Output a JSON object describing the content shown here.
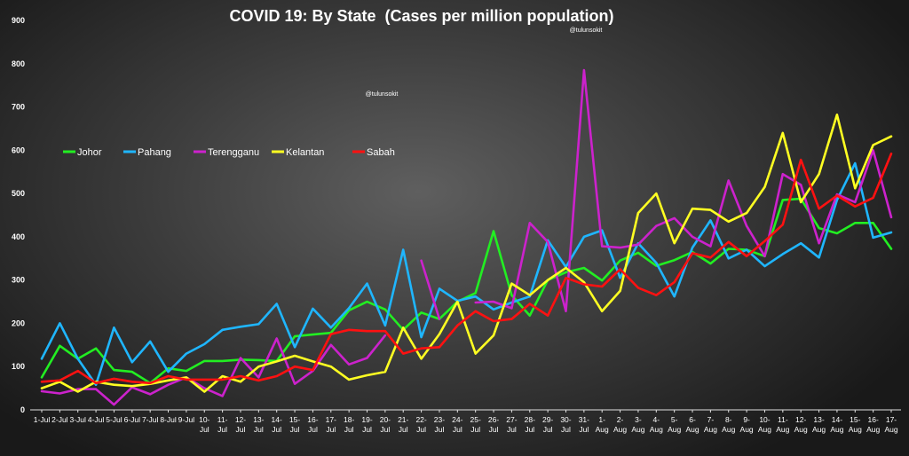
{
  "chart_data": {
    "type": "line",
    "title": "COVID 19: By State  (Cases per million population)",
    "watermarks": [
      "@tulunsokit",
      "@tulunsokit"
    ],
    "legend_position": "upper-left",
    "grid": false,
    "ylim": [
      0,
      900
    ],
    "yticks": [
      0,
      100,
      200,
      300,
      400,
      500,
      600,
      700,
      800,
      900
    ],
    "x": [
      "1-Jul",
      "2-Jul",
      "3-Jul",
      "4-Jul",
      "5-Jul",
      "6-Jul",
      "7-Jul",
      "8-Jul",
      "9-Jul",
      "10-Jul",
      "11-Jul",
      "12-Jul",
      "13-Jul",
      "14-Jul",
      "15-Jul",
      "16-Jul",
      "17-Jul",
      "18-Jul",
      "19-Jul",
      "20-Jul",
      "21-Jul",
      "22-Jul",
      "23-Jul",
      "24-Jul",
      "25-Jul",
      "26-Jul",
      "27-Jul",
      "28-Jul",
      "29-Jul",
      "30-Jul",
      "31-Jul",
      "1-Aug",
      "2-Aug",
      "3-Aug",
      "4-Aug",
      "5-Aug",
      "6-Aug",
      "7-Aug",
      "8-Aug",
      "9-Aug",
      "10-Aug",
      "11-Aug",
      "12-Aug",
      "13-Aug",
      "14-Aug",
      "15-Aug",
      "16-Aug",
      "17-Aug"
    ],
    "x_tick_labels": [
      [
        "1-Jul"
      ],
      [
        "2-Jul"
      ],
      [
        "3-Jul"
      ],
      [
        "4-Jul"
      ],
      [
        "5-Jul"
      ],
      [
        "6-Jul"
      ],
      [
        "7-Jul"
      ],
      [
        "8-Jul"
      ],
      [
        "9-Jul"
      ],
      [
        "10-",
        "Jul"
      ],
      [
        "11-",
        "Jul"
      ],
      [
        "12-",
        "Jul"
      ],
      [
        "13-",
        "Jul"
      ],
      [
        "14-",
        "Jul"
      ],
      [
        "15-",
        "Jul"
      ],
      [
        "16-",
        "Jul"
      ],
      [
        "17-",
        "Jul"
      ],
      [
        "18-",
        "Jul"
      ],
      [
        "19-",
        "Jul"
      ],
      [
        "20-",
        "Jul"
      ],
      [
        "21-",
        "Jul"
      ],
      [
        "22-",
        "Jul"
      ],
      [
        "23-",
        "Jul"
      ],
      [
        "24-",
        "Jul"
      ],
      [
        "25-",
        "Jul"
      ],
      [
        "26-",
        "Jul"
      ],
      [
        "27-",
        "Jul"
      ],
      [
        "28-",
        "Jul"
      ],
      [
        "29-",
        "Jul"
      ],
      [
        "30-",
        "Jul"
      ],
      [
        "31-",
        "Jul"
      ],
      [
        "1-",
        "Aug"
      ],
      [
        "2-",
        "Aug"
      ],
      [
        "3-",
        "Aug"
      ],
      [
        "4-",
        "Aug"
      ],
      [
        "5-",
        "Aug"
      ],
      [
        "6-",
        "Aug"
      ],
      [
        "7-",
        "Aug"
      ],
      [
        "8-",
        "Aug"
      ],
      [
        "9-",
        "Aug"
      ],
      [
        "10-",
        "Aug"
      ],
      [
        "11-",
        "Aug"
      ],
      [
        "12-",
        "Aug"
      ],
      [
        "13-",
        "Aug"
      ],
      [
        "14-",
        "Aug"
      ],
      [
        "15-",
        "Aug"
      ],
      [
        "16-",
        "Aug"
      ],
      [
        "17-",
        "Aug"
      ]
    ],
    "series": [
      {
        "name": "Johor",
        "color": "#22ee22",
        "values": [
          75,
          148,
          118,
          142,
          92,
          88,
          62,
          96,
          90,
          113,
          113,
          116,
          115,
          113,
          170,
          174,
          178,
          230,
          250,
          232,
          185,
          225,
          210,
          250,
          270,
          413,
          265,
          218,
          300,
          318,
          328,
          299,
          345,
          363,
          333,
          346,
          365,
          338,
          372,
          370,
          355,
          485,
          488,
          420,
          408,
          432,
          432,
          372
        ]
      },
      {
        "name": "Pahang",
        "color": "#1fb6ff",
        "values": [
          118,
          200,
          118,
          58,
          190,
          110,
          158,
          88,
          130,
          152,
          185,
          192,
          198,
          245,
          145,
          234,
          190,
          235,
          292,
          195,
          370,
          168,
          280,
          252,
          262,
          232,
          248,
          262,
          392,
          330,
          400,
          415,
          305,
          385,
          340,
          262,
          375,
          438,
          350,
          370,
          332,
          360,
          385,
          352,
          485,
          570,
          398,
          410
        ]
      },
      {
        "name": "Terengganu",
        "color": "#cc22cc",
        "values": [
          43,
          38,
          48,
          48,
          12,
          52,
          36,
          58,
          75,
          50,
          32,
          120,
          75,
          165,
          60,
          90,
          150,
          105,
          120,
          172,
          null,
          345,
          210,
          null,
          248,
          250,
          235,
          432,
          388,
          228,
          785,
          378,
          375,
          382,
          425,
          443,
          400,
          378,
          530,
          425,
          355,
          545,
          520,
          385,
          498,
          480,
          600,
          445
        ]
      },
      {
        "name": "Kelantan",
        "color": "#ffff22",
        "values": [
          50,
          65,
          42,
          65,
          58,
          55,
          60,
          68,
          75,
          42,
          78,
          65,
          100,
          112,
          125,
          112,
          100,
          70,
          80,
          88,
          190,
          118,
          175,
          250,
          130,
          172,
          292,
          265,
          300,
          328,
          295,
          228,
          275,
          455,
          500,
          385,
          465,
          462,
          435,
          455,
          515,
          640,
          480,
          545,
          682,
          512,
          612,
          632
        ]
      },
      {
        "name": "Sabah",
        "color": "#ff1111",
        "values": [
          65,
          68,
          90,
          62,
          72,
          65,
          62,
          78,
          70,
          70,
          70,
          78,
          68,
          78,
          100,
          92,
          175,
          185,
          182,
          182,
          130,
          142,
          145,
          195,
          228,
          205,
          210,
          245,
          218,
          305,
          290,
          285,
          325,
          282,
          265,
          295,
          362,
          352,
          388,
          355,
          390,
          428,
          578,
          465,
          495,
          470,
          490,
          592
        ]
      }
    ]
  }
}
